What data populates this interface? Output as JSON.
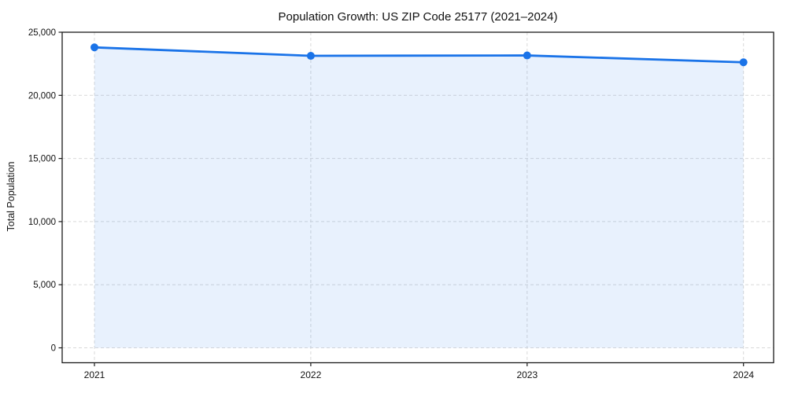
{
  "chart_data": {
    "type": "line",
    "title": "Population Growth: US ZIP Code 25177 (2021–2024)",
    "xlabel": "",
    "ylabel": "Total Population",
    "x": [
      2021,
      2022,
      2023,
      2024
    ],
    "xtick_labels": [
      "2021",
      "2022",
      "2023",
      "2024"
    ],
    "series": [
      {
        "name": "Total Population",
        "values": [
          23800,
          23130,
          23160,
          22620
        ]
      }
    ],
    "ylim": [
      -1180,
      25000
    ],
    "yticks": [
      0,
      5000,
      10000,
      15000,
      20000,
      25000
    ],
    "ytick_labels": [
      "0",
      "5,000",
      "10,000",
      "15,000",
      "20,000",
      "25,000"
    ],
    "grid": true,
    "grid_style": "dashed",
    "legend": false,
    "area_fill": true,
    "marker": "circle",
    "colors": {
      "line": "#1a73e8",
      "marker": "#1a73e8",
      "fill": "#1a73e8",
      "fill_opacity": 0.1,
      "grid": "#d9d9d9",
      "spine": "#1a1a1a",
      "text": "#111111"
    }
  }
}
